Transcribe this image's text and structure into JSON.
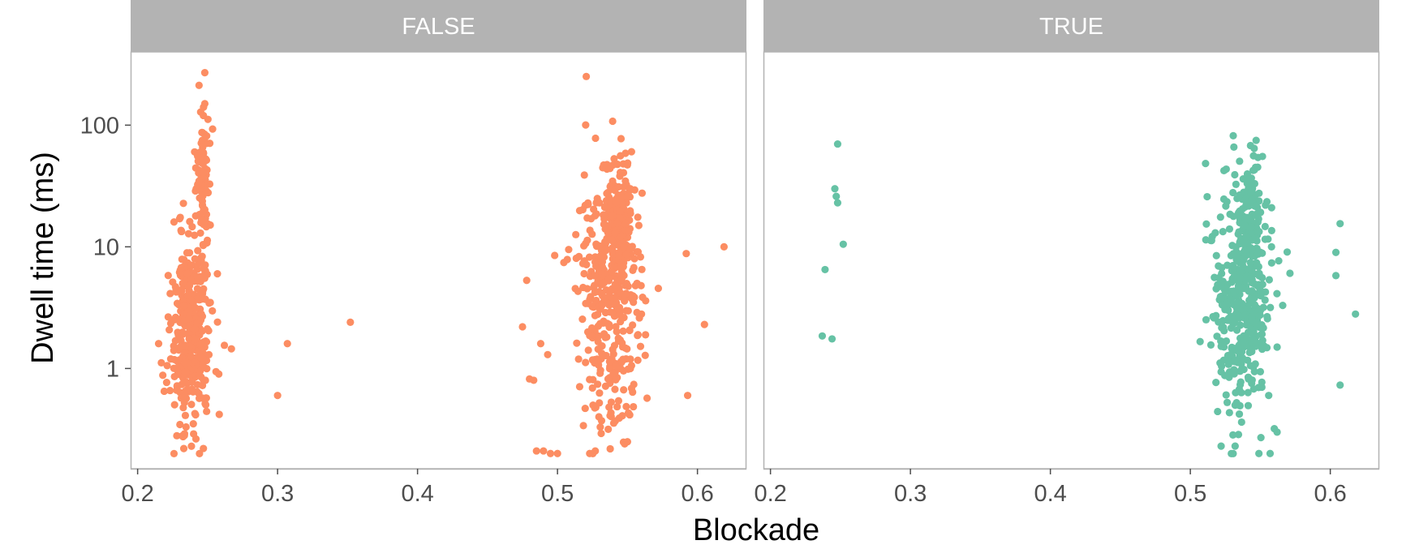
{
  "chart_data": {
    "type": "scatter",
    "xlabel": "Blockade",
    "ylabel": "Dwell time (ms)",
    "y_scale": "log10",
    "xlim": [
      0.195,
      0.635
    ],
    "ylim": [
      0.15,
      400
    ],
    "x_ticks": [
      0.2,
      0.3,
      0.4,
      0.5,
      0.6
    ],
    "x_tick_labels": [
      "0.2",
      "0.3",
      "0.4",
      "0.5",
      "0.6"
    ],
    "y_ticks": [
      1,
      10,
      100
    ],
    "y_tick_labels": [
      "1",
      "10",
      "100"
    ],
    "grid": false,
    "legend": "none",
    "facet_strip_color": "#b3b3b3",
    "facet_border_color": "#b3b3b3",
    "panels": [
      {
        "label": "FALSE",
        "color": "#fc8d62",
        "seed": 11,
        "clusters": [
          {
            "x_center": 0.238,
            "x_spread": 0.007,
            "log_y_mean": 0.3,
            "log_y_sd": 0.38,
            "n": 360
          },
          {
            "x_center": 0.247,
            "x_spread": 0.0025,
            "log_y_mean": 1.45,
            "log_y_sd": 0.4,
            "n": 90
          },
          {
            "x_center": 0.538,
            "x_spread": 0.011,
            "log_y_mean": 0.55,
            "log_y_sd": 0.48,
            "n": 380
          },
          {
            "x_center": 0.545,
            "x_spread": 0.004,
            "log_y_mean": 1.25,
            "log_y_sd": 0.25,
            "n": 120
          }
        ],
        "points": [
          {
            "x": 0.248,
            "y": 270
          },
          {
            "x": 0.248,
            "y": 150
          },
          {
            "x": 0.247,
            "y": 120
          },
          {
            "x": 0.225,
            "y": 2.5
          },
          {
            "x": 0.215,
            "y": 1.6
          },
          {
            "x": 0.218,
            "y": 0.88
          },
          {
            "x": 0.219,
            "y": 0.65
          },
          {
            "x": 0.228,
            "y": 0.28
          },
          {
            "x": 0.24,
            "y": 0.29
          },
          {
            "x": 0.247,
            "y": 0.22
          },
          {
            "x": 0.262,
            "y": 1.55
          },
          {
            "x": 0.267,
            "y": 1.45
          },
          {
            "x": 0.258,
            "y": 0.9
          },
          {
            "x": 0.257,
            "y": 6.0
          },
          {
            "x": 0.23,
            "y": 17.0
          },
          {
            "x": 0.226,
            "y": 16.0
          },
          {
            "x": 0.3,
            "y": 0.6
          },
          {
            "x": 0.307,
            "y": 1.6
          },
          {
            "x": 0.352,
            "y": 2.4
          },
          {
            "x": 0.475,
            "y": 2.2
          },
          {
            "x": 0.478,
            "y": 5.3
          },
          {
            "x": 0.48,
            "y": 0.82
          },
          {
            "x": 0.483,
            "y": 0.8
          },
          {
            "x": 0.485,
            "y": 0.21
          },
          {
            "x": 0.49,
            "y": 0.21
          },
          {
            "x": 0.495,
            "y": 0.2
          },
          {
            "x": 0.5,
            "y": 0.2
          },
          {
            "x": 0.488,
            "y": 1.6
          },
          {
            "x": 0.493,
            "y": 1.3
          },
          {
            "x": 0.498,
            "y": 8.5
          },
          {
            "x": 0.508,
            "y": 9.5
          },
          {
            "x": 0.524,
            "y": 17.0
          },
          {
            "x": 0.53,
            "y": 23.0
          },
          {
            "x": 0.533,
            "y": 47.0
          },
          {
            "x": 0.545,
            "y": 56.0
          },
          {
            "x": 0.547,
            "y": 48.0
          },
          {
            "x": 0.552,
            "y": 30.0
          },
          {
            "x": 0.563,
            "y": 3.6
          },
          {
            "x": 0.564,
            "y": 0.57
          },
          {
            "x": 0.56,
            "y": 2.8
          },
          {
            "x": 0.548,
            "y": 0.24
          },
          {
            "x": 0.55,
            "y": 0.25
          },
          {
            "x": 0.523,
            "y": 0.2
          },
          {
            "x": 0.527,
            "y": 0.21
          },
          {
            "x": 0.592,
            "y": 8.8
          },
          {
            "x": 0.593,
            "y": 0.6
          },
          {
            "x": 0.605,
            "y": 2.3
          },
          {
            "x": 0.619,
            "y": 10.0
          }
        ]
      },
      {
        "label": "TRUE",
        "color": "#66c2a5",
        "seed": 29,
        "clusters": [
          {
            "x_center": 0.537,
            "x_spread": 0.01,
            "log_y_mean": 0.55,
            "log_y_sd": 0.48,
            "n": 420
          },
          {
            "x_center": 0.543,
            "x_spread": 0.004,
            "log_y_mean": 1.2,
            "log_y_sd": 0.25,
            "n": 110
          }
        ],
        "points": [
          {
            "x": 0.248,
            "y": 70
          },
          {
            "x": 0.246,
            "y": 30
          },
          {
            "x": 0.247,
            "y": 26
          },
          {
            "x": 0.248,
            "y": 23
          },
          {
            "x": 0.252,
            "y": 10.5
          },
          {
            "x": 0.239,
            "y": 6.5
          },
          {
            "x": 0.237,
            "y": 1.85
          },
          {
            "x": 0.244,
            "y": 1.75
          },
          {
            "x": 0.547,
            "y": 75
          },
          {
            "x": 0.543,
            "y": 68
          },
          {
            "x": 0.528,
            "y": 14.0
          },
          {
            "x": 0.558,
            "y": 10.0
          },
          {
            "x": 0.566,
            "y": 3.3
          },
          {
            "x": 0.562,
            "y": 1.5
          },
          {
            "x": 0.56,
            "y": 0.32
          },
          {
            "x": 0.562,
            "y": 0.3
          },
          {
            "x": 0.557,
            "y": 0.2
          },
          {
            "x": 0.549,
            "y": 0.2
          },
          {
            "x": 0.532,
            "y": 0.23
          },
          {
            "x": 0.522,
            "y": 0.23
          },
          {
            "x": 0.556,
            "y": 0.6
          },
          {
            "x": 0.607,
            "y": 15.5
          },
          {
            "x": 0.604,
            "y": 9.0
          },
          {
            "x": 0.604,
            "y": 5.8
          },
          {
            "x": 0.607,
            "y": 0.73
          },
          {
            "x": 0.618,
            "y": 2.8
          }
        ]
      }
    ]
  }
}
